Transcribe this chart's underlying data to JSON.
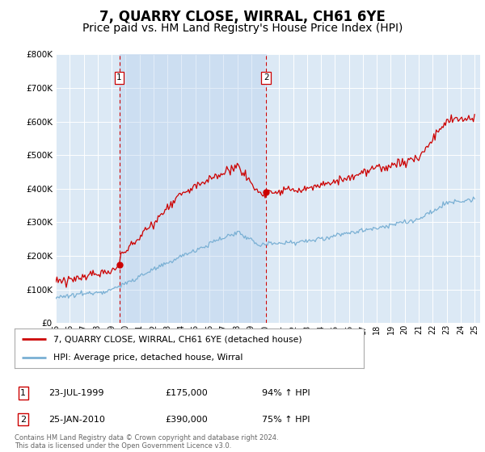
{
  "title": "7, QUARRY CLOSE, WIRRAL, CH61 6YE",
  "subtitle": "Price paid vs. HM Land Registry's House Price Index (HPI)",
  "ylim": [
    0,
    800000
  ],
  "yticks": [
    0,
    100000,
    200000,
    300000,
    400000,
    500000,
    600000,
    700000,
    800000
  ],
  "ytick_labels": [
    "£0",
    "£100K",
    "£200K",
    "£300K",
    "£400K",
    "£500K",
    "£600K",
    "£700K",
    "£800K"
  ],
  "xlim_start": 1995.0,
  "xlim_end": 2025.4,
  "plot_bg_color": "#dce9f5",
  "shade_color": "#c5d8ee",
  "sale1_date": 1999.55,
  "sale1_price": 175000,
  "sale2_date": 2010.07,
  "sale2_price": 390000,
  "legend_line1": "7, QUARRY CLOSE, WIRRAL, CH61 6YE (detached house)",
  "legend_line2": "HPI: Average price, detached house, Wirral",
  "table_row1": [
    "1",
    "23-JUL-1999",
    "£175,000",
    "94% ↑ HPI"
  ],
  "table_row2": [
    "2",
    "25-JAN-2010",
    "£390,000",
    "75% ↑ HPI"
  ],
  "footnote": "Contains HM Land Registry data © Crown copyright and database right 2024.\nThis data is licensed under the Open Government Licence v3.0.",
  "red_color": "#cc0000",
  "blue_color": "#7ab0d4",
  "title_fontsize": 12,
  "subtitle_fontsize": 10
}
